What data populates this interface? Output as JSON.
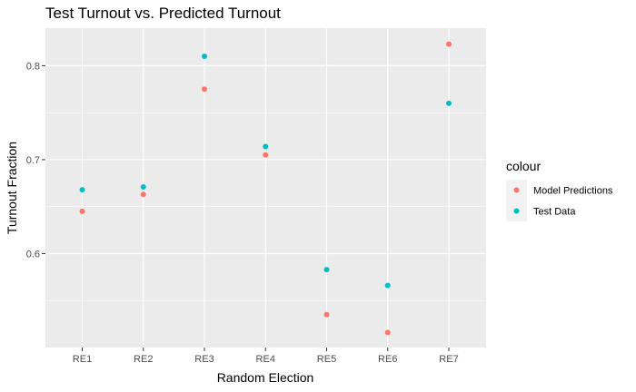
{
  "chart_data": {
    "type": "scatter",
    "title": "Test Turnout vs. Predicted Turnout",
    "xlabel": "Random Election",
    "ylabel": "Turnout Fraction",
    "categories": [
      "RE1",
      "RE2",
      "RE3",
      "RE4",
      "RE5",
      "RE6",
      "RE7"
    ],
    "ylim": [
      0.5,
      0.84
    ],
    "yticks": [
      0.6,
      0.7,
      0.8
    ],
    "ytick_labels": [
      "0.6",
      "0.7",
      "0.8"
    ],
    "grid": true,
    "legend": {
      "title": "colour",
      "placement": "right"
    },
    "series": [
      {
        "name": "Model Predictions",
        "color": "#F8766D",
        "values": [
          0.645,
          0.663,
          0.775,
          0.705,
          0.535,
          0.516,
          0.823
        ]
      },
      {
        "name": "Test Data",
        "color": "#00BFC4",
        "values": [
          0.668,
          0.671,
          0.81,
          0.714,
          0.583,
          0.566,
          0.76
        ]
      }
    ]
  }
}
